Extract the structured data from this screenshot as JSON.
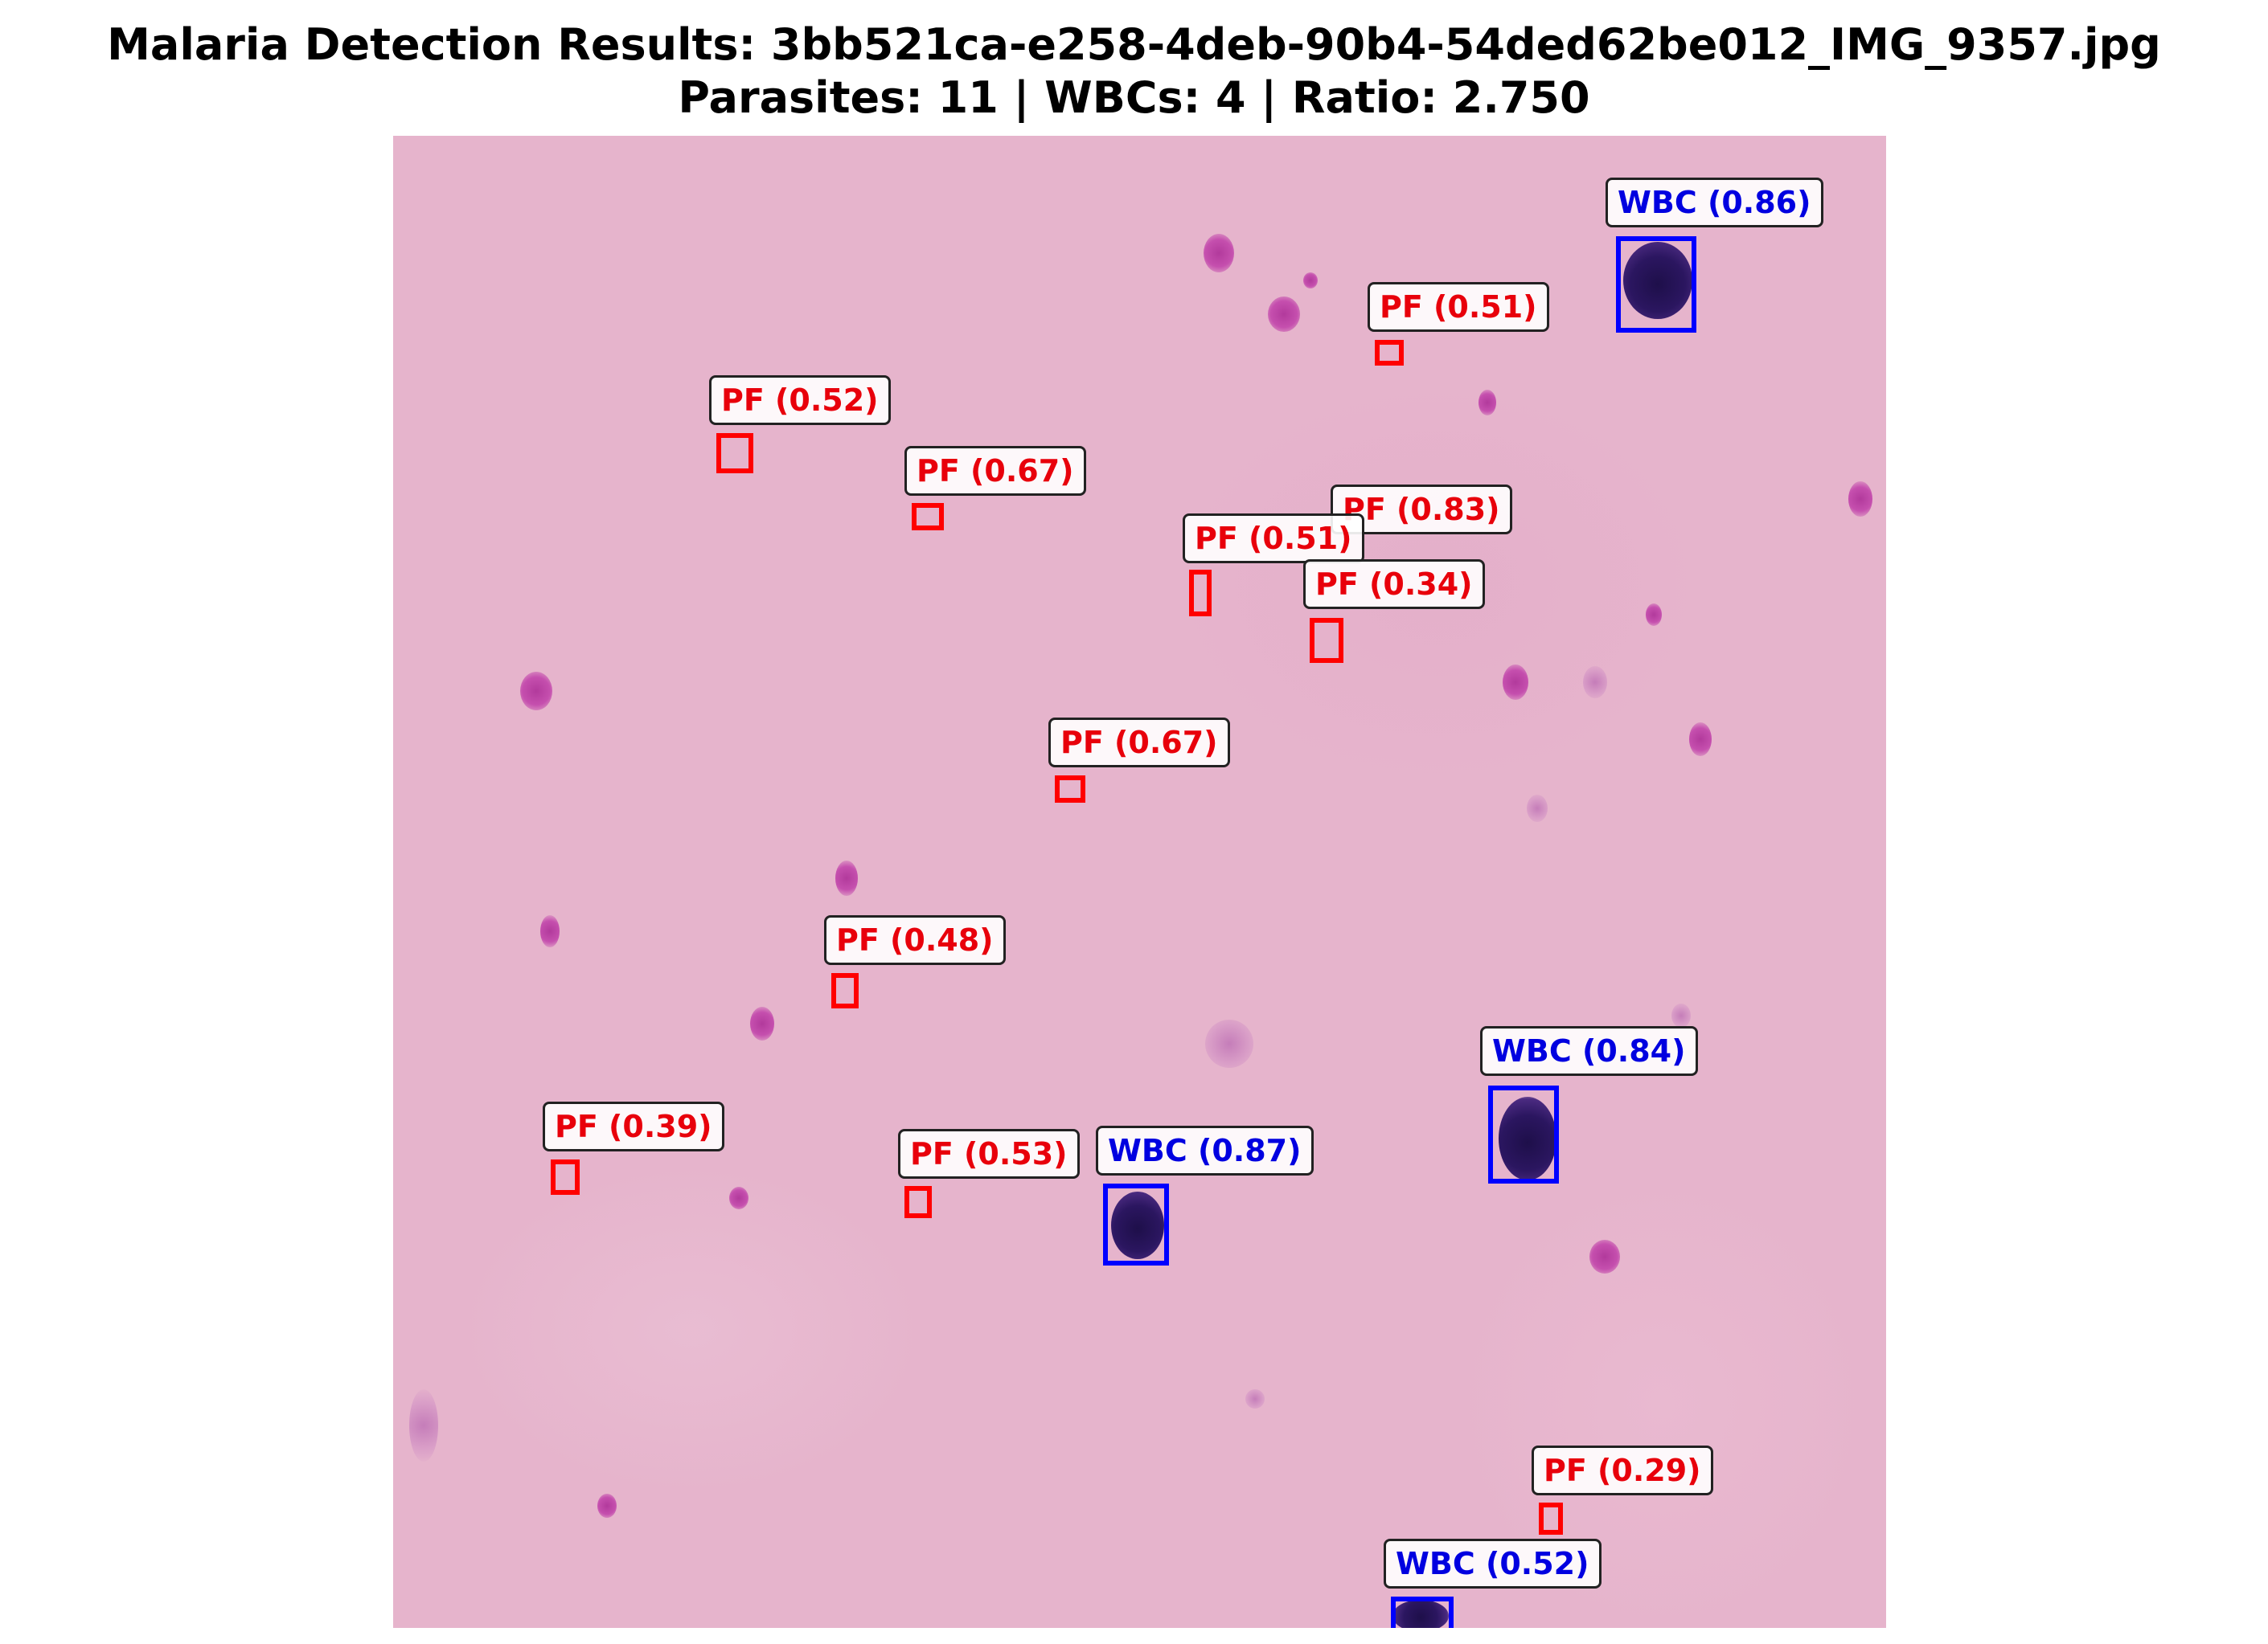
{
  "title": {
    "line1": "Malaria Detection Results: 3bb521ca-e258-4deb-90b4-54ded62be012_IMG_9357.jpg",
    "line2": "Parasites: 11 | WBCs: 4 | Ratio: 2.750"
  },
  "colors": {
    "parasite": "#ff0000",
    "wbc": "#0000ff",
    "background_stain": "#e6b4cc"
  },
  "detections": [
    {
      "label": "WBC (0.86)"
    },
    {
      "label": "PF (0.51)"
    },
    {
      "label": "PF (0.52)"
    },
    {
      "label": "PF (0.67)"
    },
    {
      "label": "PF (0.83)"
    },
    {
      "label": "PF (0.51)"
    },
    {
      "label": "PF (0.34)"
    },
    {
      "label": "PF (0.67)"
    },
    {
      "label": "PF (0.48)"
    },
    {
      "label": "WBC (0.84)"
    },
    {
      "label": "PF (0.39)"
    },
    {
      "label": "PF (0.53)"
    },
    {
      "label": "WBC (0.87)"
    },
    {
      "label": "PF (0.29)"
    },
    {
      "label": "WBC (0.52)"
    }
  ]
}
